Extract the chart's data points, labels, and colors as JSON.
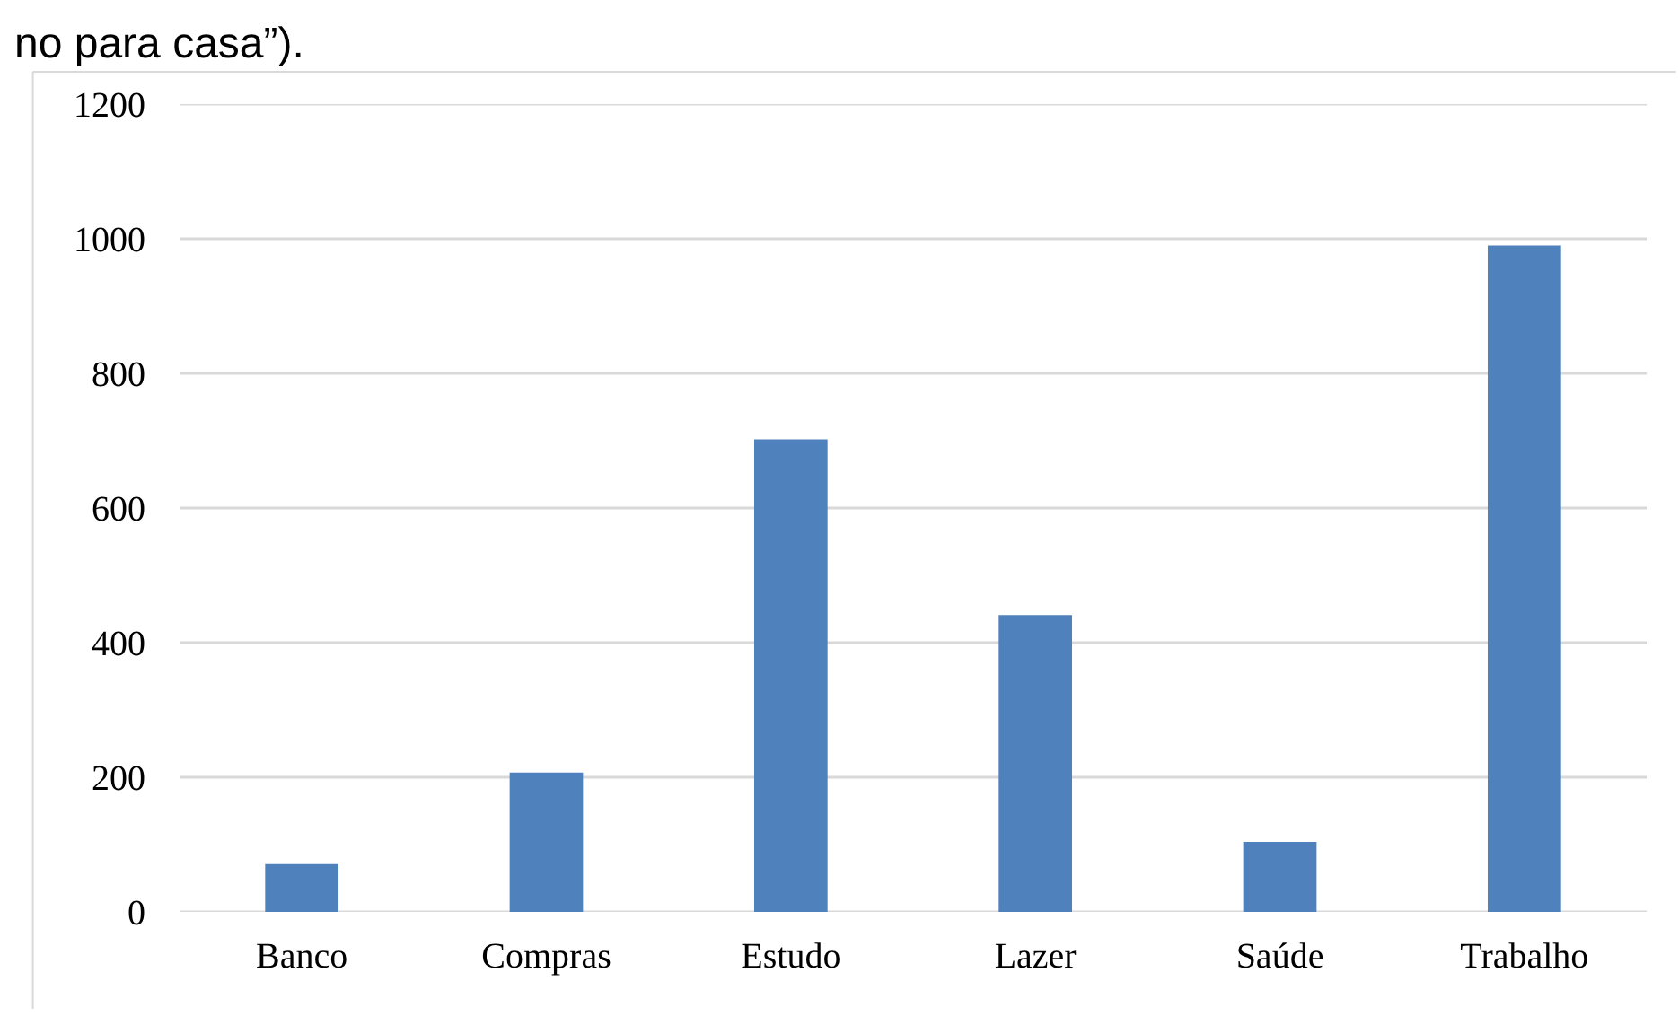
{
  "chart_data": {
    "type": "bar",
    "annotations": [
      "no para casa”)."
    ],
    "categories": [
      "Banco",
      "Compras",
      "Estudo",
      "Lazer",
      "Saúde",
      "Trabalho"
    ],
    "values": [
      71,
      207,
      702,
      441,
      104,
      990
    ],
    "color": "#4f81bd",
    "ylim": [
      0,
      1200
    ],
    "yticks": [
      0,
      200,
      400,
      600,
      800,
      1000,
      1200
    ],
    "grid": "y"
  }
}
